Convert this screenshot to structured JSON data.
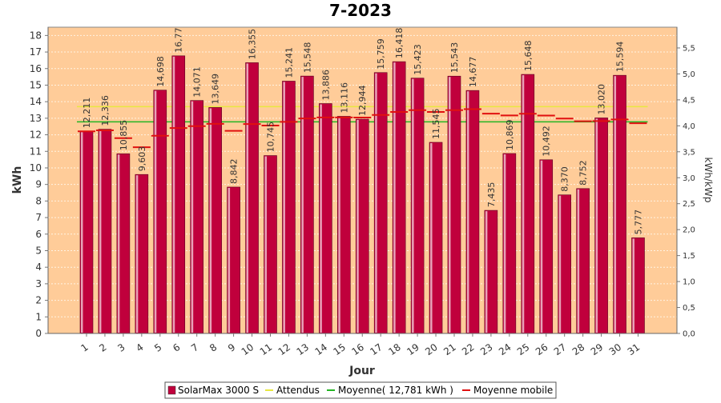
{
  "chart_data": {
    "type": "bar",
    "title": "7-2023",
    "xlabel": "Jour",
    "ylabel": "kWh",
    "y2label": "kWh/kWp",
    "ylim": [
      0,
      18.5
    ],
    "y2lim": [
      0,
      5.9
    ],
    "yticks": [
      0,
      1,
      2,
      3,
      4,
      5,
      6,
      7,
      8,
      9,
      10,
      11,
      12,
      13,
      14,
      15,
      16,
      17,
      18
    ],
    "y2ticks": [
      "0,0",
      "0,5",
      "1,0",
      "1,5",
      "2,0",
      "2,5",
      "3,0",
      "3,5",
      "4,0",
      "4,5",
      "5,0",
      "5,5"
    ],
    "categories": [
      "1",
      "2",
      "3",
      "4",
      "5",
      "6",
      "7",
      "8",
      "9",
      "10",
      "11",
      "12",
      "13",
      "14",
      "15",
      "16",
      "17",
      "18",
      "19",
      "20",
      "21",
      "22",
      "23",
      "24",
      "25",
      "26",
      "27",
      "28",
      "29",
      "30",
      "31"
    ],
    "series": [
      {
        "name": "SolarMax 3000 S",
        "color": "#c0003c",
        "values": [
          12.211,
          12.336,
          10.855,
          9.603,
          14.698,
          16.77,
          14.071,
          13.649,
          8.842,
          16.355,
          10.745,
          15.241,
          15.548,
          13.886,
          13.116,
          12.944,
          15.759,
          16.418,
          15.423,
          11.545,
          15.543,
          14.677,
          7.435,
          10.869,
          15.648,
          10.492,
          8.37,
          8.752,
          13.02,
          15.594,
          5.777
        ],
        "labels": [
          "12,211",
          "12,336",
          "10,855",
          "9,603",
          "14,698",
          "16,77",
          "14,071",
          "13,649",
          "8,842",
          "16,355",
          "10,745",
          "15,241",
          "15,548",
          "13,886",
          "13,116",
          "12,944",
          "15,759",
          "16,418",
          "15,423",
          "11,545",
          "15,543",
          "14,677",
          "7,435",
          "10,869",
          "15,648",
          "10,492",
          "8,370",
          "8,752",
          "13,020",
          "15,594",
          "5,777"
        ]
      },
      {
        "name": "Attendus",
        "color": "#e8e840",
        "value": 13.7
      },
      {
        "name": "Moyenne( 12,781 kWh )",
        "color": "#22b522",
        "value": 12.781
      },
      {
        "name": "Moyenne mobile",
        "color": "#e01010",
        "values": [
          12.21,
          12.27,
          11.8,
          11.25,
          11.94,
          12.41,
          12.52,
          12.66,
          12.24,
          12.65,
          12.56,
          12.78,
          12.99,
          13.05,
          13.05,
          13.04,
          13.2,
          13.38,
          13.49,
          13.38,
          13.49,
          13.55,
          13.28,
          13.17,
          13.27,
          13.16,
          12.98,
          12.82,
          12.83,
          12.93,
          12.7
        ]
      }
    ],
    "colors": {
      "plot_bg": "#ffcc99",
      "grid": "#fff2e0",
      "bar_fill": "#c0003c",
      "bar_highlight": "#e7a3b8"
    }
  }
}
